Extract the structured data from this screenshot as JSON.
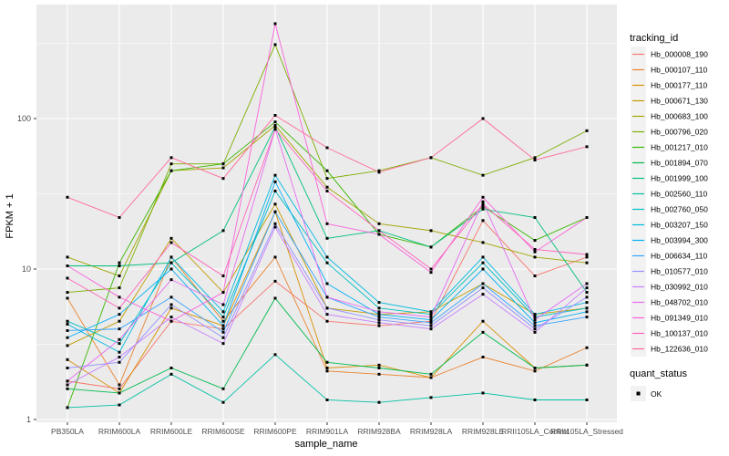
{
  "figure": {
    "y_axis_title": "FPKM + 1",
    "x_axis_title": "sample_name"
  },
  "legend": {
    "tracking_title": "tracking_id",
    "quant_title": "quant_status",
    "quant_ok_label": "OK"
  },
  "colors": {
    "panel_bg": "#EBEBEB",
    "grid": "#FFFFFF",
    "tick_text": "#4D4D4D",
    "tick_mark": "#333333",
    "point": "#000000",
    "legend_key_bg": "#F2F2F2"
  },
  "chart_data": {
    "type": "line",
    "title": "",
    "xlabel": "sample_name",
    "ylabel": "FPKM + 1",
    "y_scale": "log10",
    "ylim": [
      1,
      570
    ],
    "grid": true,
    "legend_position": "right",
    "legend_title": "tracking_id",
    "point_legend_title": "quant_status",
    "point_legend_value": "OK",
    "point_shape": "small-black-square",
    "x_categories": [
      "PB350LA",
      "RRIM600LA",
      "RRIM600LE",
      "RRIM600SE",
      "RRIM600PE",
      "RRIM901LA",
      "RRIM928BA",
      "RRIM928LA",
      "RRIM928LE",
      "RRII105LA_Control",
      "RRII105LA_Stressed"
    ],
    "y_ticks": [
      {
        "label": "100",
        "value": 100
      },
      {
        "label": "10",
        "value": 10
      },
      {
        "label": "1",
        "value": 1
      }
    ],
    "y_minor_ticks": [
      3.162,
      31.62,
      316.2
    ],
    "series": [
      {
        "name": "Hb_000008_190",
        "color": "#F8766D",
        "values": [
          1.8,
          1.6,
          4.5,
          4.0,
          8.3,
          4.5,
          4.2,
          4.5,
          21,
          9,
          12
        ]
      },
      {
        "name": "Hb_000107_110",
        "color": "#EA8331",
        "values": [
          6.4,
          1.7,
          12,
          4.5,
          12,
          2.1,
          2.0,
          1.9,
          2.6,
          2.1,
          3.0
        ]
      },
      {
        "name": "Hb_000177_110",
        "color": "#D89000",
        "values": [
          2.5,
          1.5,
          5.5,
          4.2,
          24,
          2.2,
          2.3,
          1.9,
          4.5,
          2.2,
          2.3
        ]
      },
      {
        "name": "Hb_000671_130",
        "color": "#C09B00",
        "values": [
          3.1,
          4.5,
          16,
          7,
          27,
          5.5,
          5.0,
          5.2,
          8,
          5.0,
          5.5
        ]
      },
      {
        "name": "Hb_000683_100",
        "color": "#A3A500",
        "values": [
          12,
          9,
          45,
          47,
          90,
          35,
          20,
          18,
          15,
          12,
          11
        ]
      },
      {
        "name": "Hb_000796_020",
        "color": "#7CAE00",
        "values": [
          7,
          7.5,
          50,
          50,
          310,
          40,
          45,
          55,
          42,
          55,
          83
        ]
      },
      {
        "name": "Hb_001217_010",
        "color": "#39B600",
        "values": [
          1.2,
          11,
          45,
          50,
          95,
          45,
          17,
          14,
          26,
          15.5,
          22
        ]
      },
      {
        "name": "Hb_001894_070",
        "color": "#00BB4E",
        "values": [
          1.6,
          1.5,
          2.2,
          1.6,
          6.4,
          2.4,
          2.2,
          2.0,
          3.8,
          2.2,
          2.3
        ]
      },
      {
        "name": "Hb_001999_100",
        "color": "#00BF7D",
        "values": [
          10.5,
          10.5,
          11,
          18,
          88,
          16,
          18,
          14,
          25,
          22,
          7
        ]
      },
      {
        "name": "Hb_002560_110",
        "color": "#00C1A3",
        "values": [
          1.2,
          1.25,
          2.0,
          1.3,
          2.7,
          1.35,
          1.3,
          1.4,
          1.5,
          1.35,
          1.35
        ]
      },
      {
        "name": "Hb_002760_050",
        "color": "#00BFC4",
        "values": [
          4.5,
          3.2,
          11,
          4.8,
          33,
          11,
          5.5,
          5.0,
          11,
          4.8,
          5.5
        ]
      },
      {
        "name": "Hb_003207_150",
        "color": "#00BAE0",
        "values": [
          4.3,
          2.8,
          12,
          5.2,
          42,
          12,
          6.0,
          5.2,
          12,
          5.0,
          6.0
        ]
      },
      {
        "name": "Hb_003994_300",
        "color": "#00B0F6",
        "values": [
          3.5,
          5.0,
          10,
          4.2,
          38,
          8,
          5.0,
          4.6,
          10,
          4.4,
          5.2
        ]
      },
      {
        "name": "Hb_006634_110",
        "color": "#35A2FF",
        "values": [
          3.9,
          4.0,
          6.5,
          3.8,
          24,
          6.5,
          4.8,
          4.4,
          8,
          4.2,
          4.8
        ]
      },
      {
        "name": "Hb_010577_010",
        "color": "#9590FF",
        "values": [
          2.2,
          2.4,
          5.8,
          3.5,
          20,
          5.5,
          4.6,
          4.2,
          7.5,
          4.0,
          6.5
        ]
      },
      {
        "name": "Hb_030992_010",
        "color": "#C77CFF",
        "values": [
          1.7,
          2.6,
          4.8,
          3.2,
          19,
          5.0,
          4.4,
          4.0,
          6.8,
          3.8,
          7.5
        ]
      },
      {
        "name": "Hb_048702_010",
        "color": "#E76BF3",
        "values": [
          1.8,
          3.4,
          8.5,
          5.8,
          85,
          6.5,
          5.2,
          4.8,
          28,
          4.6,
          8
        ]
      },
      {
        "name": "Hb_091349_010",
        "color": "#FA62DB",
        "values": [
          10.5,
          6.5,
          4.5,
          7,
          427,
          20,
          17,
          9.5,
          30,
          13,
          22
        ]
      },
      {
        "name": "Hb_100137_010",
        "color": "#FF62BC",
        "values": [
          8.7,
          5.5,
          15,
          9,
          85,
          33,
          18,
          10,
          27,
          13.5,
          12.5
        ]
      },
      {
        "name": "Hb_122636_010",
        "color": "#FF6A98",
        "values": [
          30,
          22,
          55,
          40,
          105,
          64,
          44,
          55,
          100,
          53,
          65
        ]
      }
    ]
  }
}
